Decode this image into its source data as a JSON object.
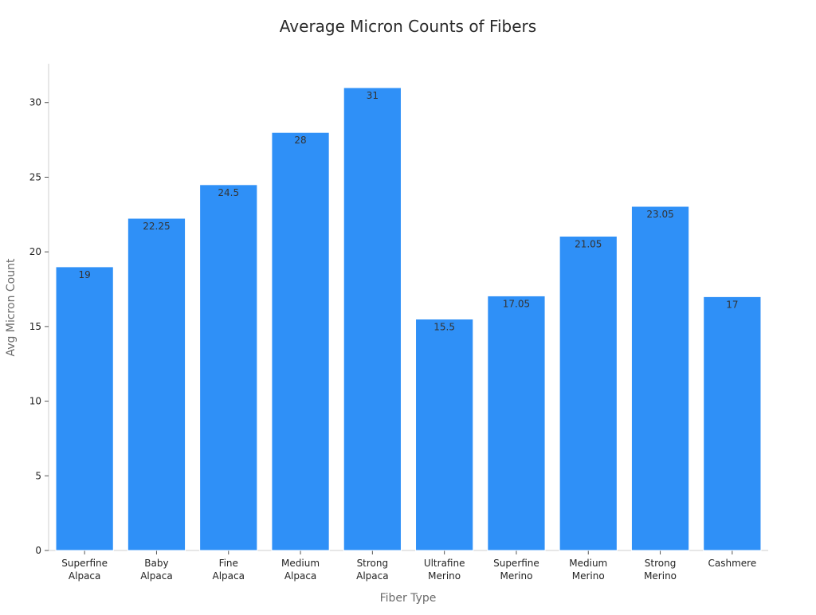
{
  "chart_data": {
    "type": "bar",
    "title": "Average Micron Counts of Fibers",
    "xlabel": "Fiber Type",
    "ylabel": "Avg Micron Count",
    "categories": [
      [
        "Superfine",
        "Alpaca"
      ],
      [
        "Baby",
        "Alpaca"
      ],
      [
        "Fine",
        "Alpaca"
      ],
      [
        "Medium",
        "Alpaca"
      ],
      [
        "Strong",
        "Alpaca"
      ],
      [
        "Ultrafine",
        "Merino"
      ],
      [
        "Superfine",
        "Merino"
      ],
      [
        "Medium",
        "Merino"
      ],
      [
        "Strong",
        "Merino"
      ],
      [
        "Cashmere"
      ]
    ],
    "values": [
      19,
      22.25,
      24.5,
      28,
      31,
      15.5,
      17.05,
      21.05,
      23.05,
      17
    ],
    "value_labels": [
      "19",
      "22.25",
      "24.5",
      "28",
      "31",
      "15.5",
      "17.05",
      "21.05",
      "23.05",
      "17"
    ],
    "ylim": [
      0,
      32.6
    ],
    "yticks": [
      0,
      5,
      10,
      15,
      20,
      25,
      30
    ],
    "grid": false,
    "legend": "none",
    "bar_color": "#2f90f7"
  }
}
